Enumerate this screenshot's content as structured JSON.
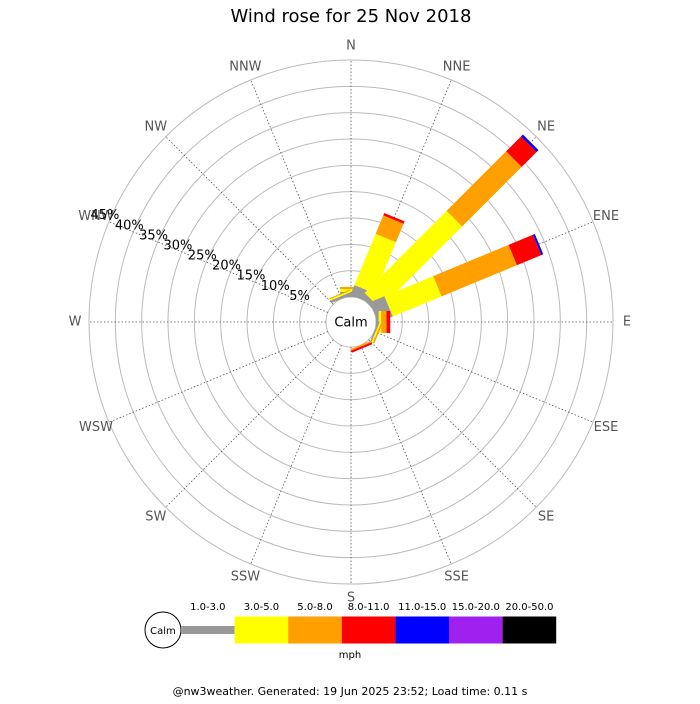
{
  "chart_data": {
    "type": "windrose",
    "title": "Wind rose for 25 Nov 2018",
    "center_label": "Calm",
    "directions": [
      "N",
      "NNE",
      "NE",
      "ENE",
      "E",
      "ESE",
      "SE",
      "SSE",
      "S",
      "SSW",
      "SW",
      "WSW",
      "W",
      "WNW",
      "NW",
      "NNW"
    ],
    "rlim": [
      0,
      45
    ],
    "rticks": [
      {
        "value": 5,
        "label": "5%"
      },
      {
        "value": 10,
        "label": "10%"
      },
      {
        "value": 15,
        "label": "15%"
      },
      {
        "value": 20,
        "label": "20%"
      },
      {
        "value": 25,
        "label": "25%"
      },
      {
        "value": 30,
        "label": "30%"
      },
      {
        "value": 35,
        "label": "35%"
      },
      {
        "value": 40,
        "label": "40%"
      },
      {
        "value": 45,
        "label": "45%"
      }
    ],
    "series": [
      {
        "name": "1.0-3.0",
        "color": "#999999",
        "values": [
          1,
          2,
          1,
          3,
          0.5,
          0.3,
          0,
          0,
          0,
          0,
          0,
          0,
          0,
          0,
          0,
          0.5
        ]
      },
      {
        "name": "3.0-5.0",
        "color": "#ffff00",
        "values": [
          0.5,
          10.5,
          22,
          10,
          0.5,
          0.3,
          0,
          0,
          0,
          0,
          0,
          0,
          0,
          0,
          0,
          0.3
        ]
      },
      {
        "name": "5.0-8.0",
        "color": "#ffa000",
        "values": [
          0.4,
          3.8,
          16,
          15.5,
          1,
          0.3,
          0,
          0.3,
          0,
          0,
          0,
          0,
          0,
          0,
          0,
          0.2
        ]
      },
      {
        "name": "8.0-11.0",
        "color": "#ff0000",
        "values": [
          0,
          0.5,
          4,
          5,
          0.7,
          0,
          0,
          0.4,
          0,
          0,
          0,
          0,
          0,
          0,
          0,
          0
        ]
      },
      {
        "name": "11.0-15.0",
        "color": "#0000ff",
        "values": [
          0,
          0,
          0.5,
          0.4,
          0,
          0,
          0,
          0,
          0,
          0,
          0,
          0,
          0,
          0,
          0,
          0
        ]
      },
      {
        "name": "15.0-20.0",
        "color": "#a020f0",
        "values": [
          0,
          0,
          0,
          0,
          0,
          0,
          0,
          0,
          0,
          0,
          0,
          0,
          0,
          0,
          0,
          0
        ]
      },
      {
        "name": "20.0-50.0",
        "color": "#000000",
        "values": [
          0,
          0,
          0,
          0,
          0,
          0,
          0,
          0,
          0,
          0,
          0,
          0,
          0,
          0,
          0,
          0
        ]
      }
    ],
    "legend_unit": "mph",
    "footer": "@nw3weather. Generated: 19 Jun 2025 23:52; Load time: 0.11 s"
  }
}
